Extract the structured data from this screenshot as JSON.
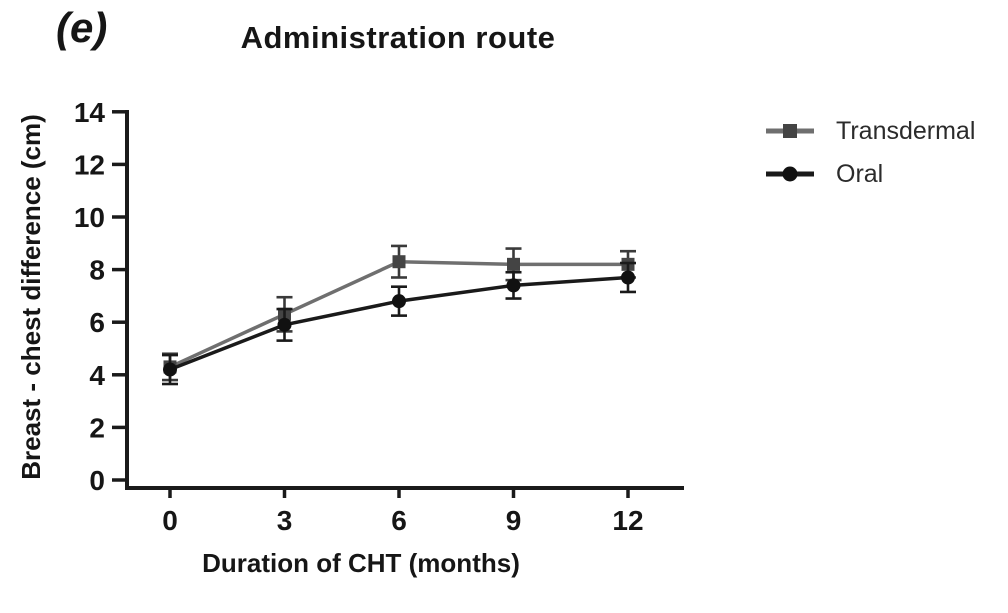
{
  "panel_label": "(e)",
  "colors": {
    "axis": "#1a1a1a",
    "text": "#161616",
    "background": "#ffffff"
  },
  "chart_data": {
    "type": "line",
    "title": "Administration route",
    "xlabel": "Duration of CHT (months)",
    "ylabel": "Breast - chest difference (cm)",
    "x": [
      0,
      3,
      6,
      9,
      12
    ],
    "xticks": [
      0,
      3,
      6,
      9,
      12
    ],
    "yticks": [
      0,
      2,
      4,
      6,
      8,
      10,
      12,
      14
    ],
    "ylim": [
      0,
      14
    ],
    "xlim": [
      -1.2,
      13.5
    ],
    "grid": false,
    "error_bars": true,
    "legend_position": "right-top",
    "series": [
      {
        "name": "Transdermal",
        "marker": "square",
        "color": "#6f6f6f",
        "marker_color": "#444444",
        "error_color": "#3a3a3a",
        "values": [
          4.3,
          6.3,
          8.3,
          8.2,
          8.2
        ],
        "errors": [
          0.5,
          0.65,
          0.6,
          0.6,
          0.5
        ]
      },
      {
        "name": "Oral",
        "marker": "circle",
        "color": "#1a1a1a",
        "marker_color": "#111111",
        "error_color": "#1a1a1a",
        "values": [
          4.2,
          5.9,
          6.8,
          7.4,
          7.7
        ],
        "errors": [
          0.55,
          0.6,
          0.55,
          0.5,
          0.55
        ]
      }
    ]
  }
}
